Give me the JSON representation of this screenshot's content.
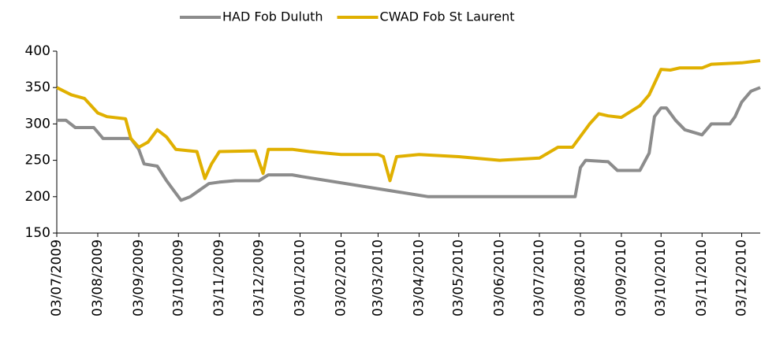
{
  "chart_data": {
    "type": "line",
    "xlim": [
      "03/07/2009",
      "17/12/2010"
    ],
    "xticks": [
      "03/07/2009",
      "03/08/2009",
      "03/09/2009",
      "03/10/2009",
      "03/11/2009",
      "03/12/2009",
      "03/01/2010",
      "03/02/2010",
      "03/03/2010",
      "03/04/2010",
      "03/05/2010",
      "03/06/2010",
      "03/07/2010",
      "03/08/2010",
      "03/09/2010",
      "03/10/2010",
      "03/11/2010",
      "03/12/2010"
    ],
    "ylim": [
      150,
      400
    ],
    "yticks": [
      150,
      200,
      250,
      300,
      350,
      400
    ],
    "grid": false,
    "legend": "top",
    "series": [
      {
        "name": "HAD Fob Duluth",
        "color": "#8c8c8c",
        "x": [
          "03/07/2009",
          "10/07/2009",
          "17/07/2009",
          "31/07/2009",
          "07/08/2009",
          "28/08/2009",
          "03/09/2009",
          "07/09/2009",
          "17/09/2009",
          "24/09/2009",
          "28/09/2009",
          "05/10/2009",
          "12/10/2009",
          "26/10/2009",
          "03/11/2009",
          "15/11/2009",
          "03/12/2009",
          "10/12/2009",
          "28/12/2009",
          "03/01/2010",
          "03/04/2010",
          "10/04/2010",
          "30/07/2010",
          "03/08/2010",
          "07/08/2010",
          "24/08/2010",
          "31/08/2010",
          "17/09/2010",
          "24/09/2010",
          "28/09/2010",
          "03/10/2010",
          "07/10/2010",
          "14/10/2010",
          "21/10/2010",
          "03/11/2010",
          "10/11/2010",
          "24/11/2010",
          "28/11/2010",
          "03/12/2010",
          "10/12/2010",
          "17/12/2010"
        ],
        "values": [
          305,
          305,
          295,
          295,
          280,
          280,
          265,
          245,
          242,
          222,
          212,
          195,
          200,
          218,
          220,
          222,
          222,
          230,
          230,
          228,
          202,
          200,
          200,
          240,
          250,
          248,
          236,
          236,
          260,
          310,
          322,
          322,
          305,
          292,
          285,
          300,
          300,
          310,
          330,
          345,
          350
        ]
      },
      {
        "name": "CWAD Fob St Laurent",
        "color": "#e0b000",
        "x": [
          "03/07/2009",
          "14/07/2009",
          "24/07/2009",
          "03/08/2009",
          "10/08/2009",
          "24/08/2009",
          "28/08/2009",
          "03/09/2009",
          "10/09/2009",
          "17/09/2009",
          "24/09/2009",
          "01/10/2009",
          "17/10/2009",
          "23/10/2009",
          "28/10/2009",
          "03/11/2009",
          "30/11/2009",
          "06/12/2009",
          "10/12/2009",
          "28/12/2009",
          "10/01/2010",
          "03/02/2010",
          "03/03/2010",
          "07/03/2010",
          "12/03/2010",
          "17/03/2010",
          "03/04/2010",
          "03/05/2010",
          "03/06/2010",
          "03/07/2010",
          "17/07/2010",
          "28/07/2010",
          "10/08/2010",
          "17/08/2010",
          "24/08/2010",
          "03/09/2010",
          "17/09/2010",
          "24/09/2010",
          "03/10/2010",
          "10/10/2010",
          "17/10/2010",
          "03/11/2010",
          "10/11/2010",
          "03/12/2010",
          "17/12/2010"
        ],
        "values": [
          350,
          340,
          335,
          315,
          310,
          307,
          280,
          268,
          275,
          292,
          282,
          265,
          262,
          225,
          245,
          262,
          263,
          232,
          265,
          265,
          262,
          258,
          258,
          255,
          222,
          255,
          258,
          255,
          250,
          253,
          268,
          268,
          300,
          314,
          311,
          309,
          325,
          340,
          375,
          374,
          377,
          377,
          382,
          384,
          387
        ]
      }
    ]
  }
}
